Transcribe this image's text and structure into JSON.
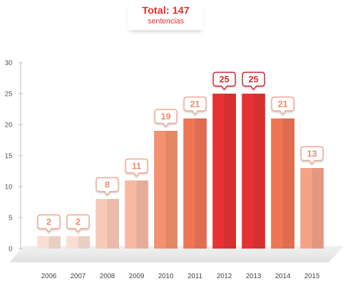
{
  "header": {
    "title": "Total: 147",
    "subtitle": "sentencias"
  },
  "chart_data": {
    "type": "bar",
    "title": "Total: 147",
    "subtitle": "sentencias",
    "xlabel": "",
    "ylabel": "",
    "categories": [
      "2006",
      "2007",
      "2008",
      "2009",
      "2010",
      "2011",
      "2012",
      "2013",
      "2014",
      "2015"
    ],
    "values": [
      2,
      2,
      8,
      11,
      19,
      21,
      25,
      25,
      21,
      13
    ],
    "data_labels": [
      "2",
      "2",
      "8",
      "11",
      "19",
      "21",
      "25",
      "25",
      "21",
      "13"
    ],
    "ylim": [
      0,
      30
    ],
    "yticks": [
      "0",
      "5",
      "10",
      "15",
      "20",
      "25",
      "30"
    ],
    "grid": false,
    "legend": "none",
    "colors": [
      "#fbded3",
      "#fbded3",
      "#f9c9b8",
      "#f7b9a4",
      "#f4916f",
      "#f07555",
      "#e63232",
      "#e63232",
      "#f07555",
      "#f4a386"
    ]
  }
}
